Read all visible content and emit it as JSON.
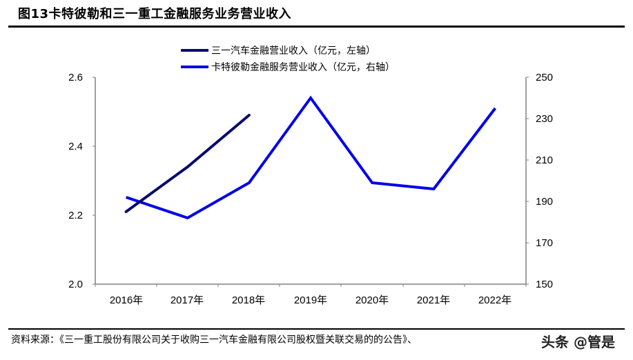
{
  "title": "图13卡特彼勒和三一重工金融服务业务营业收入",
  "legend": [
    {
      "label": "三一汽车金融营业收入（亿元，左轴）",
      "color": "#0a0a6e"
    },
    {
      "label": "卡特彼勒金融服务营业收入（亿元，右轴）",
      "color": "#0000e6"
    }
  ],
  "left_axis": {
    "ticks": [
      "2.6",
      "2.4",
      "2.2",
      "2.0"
    ]
  },
  "right_axis": {
    "ticks": [
      "250",
      "230",
      "210",
      "190",
      "170",
      "150"
    ]
  },
  "x_axis": {
    "ticks": [
      "2016年",
      "2017年",
      "2018年",
      "2019年",
      "2020年",
      "2021年",
      "2022年"
    ]
  },
  "source": "资料来源：《三一重工股份有限公司关于收购三一汽车金融有限公司股权暨关联交易的的公告》、",
  "watermark": "头条 @管是",
  "chart_data": {
    "type": "line",
    "title": "图13卡特彼勒和三一重工金融服务业务营业收入",
    "categories": [
      "2016年",
      "2017年",
      "2018年",
      "2019年",
      "2020年",
      "2021年",
      "2022年"
    ],
    "series": [
      {
        "name": "三一汽车金融营业收入（亿元，左轴）",
        "axis": "left",
        "color": "#0a0a6e",
        "values": [
          2.21,
          2.34,
          2.49,
          null,
          null,
          null,
          null
        ]
      },
      {
        "name": "卡特彼勒金融服务营业收入（亿元，右轴）",
        "axis": "right",
        "color": "#0000e6",
        "values": [
          192,
          182,
          199,
          240,
          199,
          196,
          235
        ]
      }
    ],
    "xlabel": "",
    "ylabel_left": "",
    "ylabel_right": "",
    "ylim_left": [
      2.0,
      2.6
    ],
    "ylim_right": [
      150,
      250
    ],
    "grid": false,
    "legend_position": "top-center"
  }
}
